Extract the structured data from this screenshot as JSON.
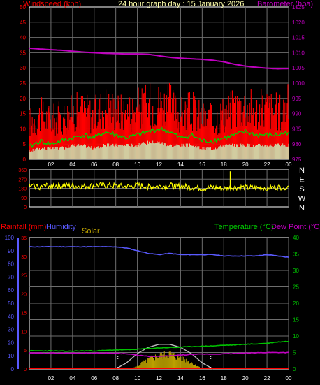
{
  "header": {
    "left_title": "Windspeed (kph)",
    "center_title": "24 hour graph day : 15 January 2026",
    "right_title": "Barometer (hpa)"
  },
  "colors": {
    "background": "#000000",
    "frame": "#ffffff",
    "grid": "#6e6e6e",
    "windspeed": "#ff0000",
    "gust_avg": "#00d000",
    "wind_min": "#c8ffc8",
    "barometer": "#c000c0",
    "direction": "#ffff00",
    "rainfall": "#ff0000",
    "humidity": "#5a5aff",
    "solar": "#bba000",
    "temperature": "#00c000",
    "dewpoint": "#c000c0",
    "solar_max": "#bbbbbb",
    "center_title": "#ffffaa"
  },
  "chart_data": [
    {
      "type": "line",
      "name": "wind-and-pressure",
      "title": "24 hour graph day : 15 January 2026",
      "ylabel_left": "Windspeed (kph)",
      "ylabel_right": "Barometer (hpa)",
      "x_ticks": [
        "02",
        "04",
        "06",
        "08",
        "10",
        "12",
        "14",
        "16",
        "18",
        "20",
        "22",
        "00"
      ],
      "y_left_ticks": [
        "0",
        "5",
        "10",
        "15",
        "20",
        "25",
        "30",
        "35",
        "40",
        "45",
        "50"
      ],
      "y_right_ticks": [
        "975",
        "980",
        "985",
        "990",
        "995",
        "1000",
        "1005",
        "1010",
        "1015",
        "1020",
        "1025"
      ],
      "ylim_left": [
        0,
        50
      ],
      "ylim_right": [
        975,
        1025
      ],
      "grid": true,
      "series": [
        {
          "key": "windspeed_max",
          "unit": "kph",
          "x": [
            0,
            1,
            2,
            3,
            4,
            5,
            6,
            7,
            8,
            9,
            10,
            11,
            12,
            13,
            14,
            15,
            16,
            17,
            18,
            19,
            20,
            21,
            22,
            23,
            24
          ],
          "values": [
            15,
            18,
            16,
            17,
            19,
            20,
            18,
            22,
            20,
            19,
            21,
            22,
            23,
            22,
            18,
            20,
            17,
            16,
            19,
            21,
            22,
            20,
            21,
            19,
            22
          ]
        },
        {
          "key": "windspeed_avg",
          "unit": "kph",
          "x": [
            0,
            1,
            2,
            3,
            4,
            5,
            6,
            7,
            8,
            9,
            10,
            11,
            12,
            13,
            14,
            15,
            16,
            17,
            18,
            19,
            20,
            21,
            22,
            23,
            24
          ],
          "values": [
            4,
            6,
            5,
            6,
            7,
            8,
            7,
            9,
            8,
            7,
            8,
            9,
            10,
            9,
            7,
            8,
            6,
            6,
            7,
            8,
            9,
            8,
            8,
            8,
            9
          ]
        },
        {
          "key": "windspeed_min",
          "unit": "kph",
          "x": [
            0,
            1,
            2,
            3,
            4,
            5,
            6,
            7,
            8,
            9,
            10,
            11,
            12,
            13,
            14,
            15,
            16,
            17,
            18,
            19,
            20,
            21,
            22,
            23,
            24
          ],
          "values": [
            2,
            3,
            3,
            3,
            4,
            4,
            3,
            4,
            4,
            4,
            4,
            5,
            5,
            4,
            4,
            4,
            3,
            3,
            4,
            4,
            4,
            4,
            4,
            4,
            4
          ]
        },
        {
          "key": "barometer",
          "unit": "hpa",
          "x": [
            0,
            1,
            2,
            3,
            4,
            5,
            6,
            7,
            8,
            9,
            10,
            11,
            12,
            13,
            14,
            15,
            16,
            17,
            18,
            19,
            20,
            21,
            22,
            23,
            24
          ],
          "values": [
            1011.5,
            1011.2,
            1011.0,
            1010.8,
            1010.5,
            1010.2,
            1010.0,
            1009.8,
            1009.7,
            1009.6,
            1009.6,
            1009.5,
            1009.0,
            1008.5,
            1008.2,
            1008.0,
            1007.8,
            1007.5,
            1007.0,
            1006.2,
            1005.6,
            1005.2,
            1004.9,
            1004.7,
            1004.8
          ]
        }
      ]
    },
    {
      "type": "line",
      "name": "wind-direction",
      "x_ticks": [
        "02",
        "04",
        "06",
        "08",
        "10",
        "12",
        "14",
        "16",
        "18",
        "20",
        "22",
        "00"
      ],
      "y_left_ticks": [
        "0",
        "90",
        "180",
        "270",
        "360"
      ],
      "y_right_labels": [
        "N",
        "W",
        "S",
        "E",
        "N"
      ],
      "ylim": [
        0,
        360
      ],
      "grid": true,
      "series": [
        {
          "key": "direction",
          "unit": "deg",
          "x": [
            0,
            1,
            2,
            3,
            4,
            5,
            6,
            7,
            8,
            9,
            10,
            11,
            12,
            13,
            14,
            15,
            16,
            17,
            18,
            19,
            20,
            21,
            22,
            23,
            24
          ],
          "values": [
            200,
            195,
            210,
            205,
            200,
            198,
            205,
            210,
            200,
            195,
            205,
            200,
            198,
            205,
            195,
            190,
            180,
            185,
            175,
            190,
            185,
            180,
            185,
            190,
            195
          ]
        }
      ]
    },
    {
      "type": "line",
      "name": "rain-humidity-temperature",
      "legend": {
        "rainfall": "Rainfall (mm)",
        "humidity": "Humidity",
        "solar": "Solar",
        "temperature": "Temperature (°C)",
        "dewpoint": "Dew Point (°C)"
      },
      "x_ticks": [
        "02",
        "04",
        "06",
        "08",
        "10",
        "12",
        "14",
        "16",
        "18",
        "20",
        "22",
        "00"
      ],
      "y_humidity_ticks": [
        "0",
        "10",
        "20",
        "30",
        "40",
        "50",
        "60",
        "70",
        "80",
        "90",
        "100"
      ],
      "y_rain_ticks": [
        "0",
        "5",
        "10",
        "15",
        "20",
        "25",
        "30",
        "35"
      ],
      "y_temp_ticks": [
        "0",
        "5",
        "10",
        "15",
        "20",
        "25",
        "30",
        "35",
        "40"
      ],
      "ylim_humidity": [
        0,
        100
      ],
      "ylim_rain": [
        0,
        35
      ],
      "ylim_temp": [
        0,
        40
      ],
      "grid": true,
      "series": [
        {
          "key": "humidity",
          "unit": "%",
          "x": [
            0,
            1,
            2,
            3,
            4,
            5,
            6,
            7,
            8,
            9,
            10,
            11,
            12,
            13,
            14,
            15,
            16,
            17,
            18,
            19,
            20,
            21,
            22,
            23,
            24
          ],
          "values": [
            93,
            93,
            93,
            93,
            93,
            93,
            93,
            93,
            93,
            92,
            90,
            88,
            87,
            88,
            87,
            87,
            87,
            87,
            86,
            86,
            86,
            86,
            87,
            86,
            85
          ]
        },
        {
          "key": "temperature",
          "unit": "°C",
          "x": [
            0,
            1,
            2,
            3,
            4,
            5,
            6,
            7,
            8,
            9,
            10,
            11,
            12,
            13,
            14,
            15,
            16,
            17,
            18,
            19,
            20,
            21,
            22,
            23,
            24
          ],
          "values": [
            5.5,
            5.5,
            5.5,
            5.4,
            5.4,
            5.5,
            5.5,
            5.6,
            5.8,
            5.8,
            6.0,
            6.2,
            6.4,
            6.5,
            6.6,
            6.8,
            6.9,
            7.0,
            7.2,
            7.3,
            7.5,
            7.6,
            7.8,
            8.2,
            8.4
          ]
        },
        {
          "key": "dewpoint",
          "unit": "°C",
          "x": [
            0,
            1,
            2,
            3,
            4,
            5,
            6,
            7,
            8,
            9,
            10,
            11,
            12,
            13,
            14,
            15,
            16,
            17,
            18,
            19,
            20,
            21,
            22,
            23,
            24
          ],
          "values": [
            4.8,
            4.8,
            4.8,
            4.8,
            4.8,
            4.8,
            4.8,
            4.8,
            4.8,
            4.6,
            4.2,
            3.8,
            3.8,
            4.0,
            4.2,
            4.4,
            4.5,
            4.5,
            4.6,
            4.7,
            4.8,
            4.9,
            5.0,
            5.0,
            5.0
          ]
        },
        {
          "key": "rainfall",
          "unit": "mm",
          "x": [
            0,
            24
          ],
          "values": [
            0,
            0
          ]
        },
        {
          "key": "solar_max",
          "unit": "rel",
          "x": [
            8,
            9,
            10,
            11,
            12,
            13,
            14,
            15,
            16,
            17
          ],
          "values": [
            0,
            4,
            10,
            14,
            16,
            16,
            14,
            10,
            4,
            0
          ]
        },
        {
          "key": "solar",
          "unit": "rel",
          "x": [
            9,
            9.5,
            10,
            10.5,
            11,
            11.5,
            12,
            12.5,
            13,
            13.5,
            14,
            14.5,
            15,
            15.5,
            16
          ],
          "values": [
            0,
            0.5,
            2,
            5,
            7,
            9,
            10,
            11,
            12,
            10,
            9,
            7,
            5,
            3,
            0
          ]
        }
      ]
    }
  ]
}
